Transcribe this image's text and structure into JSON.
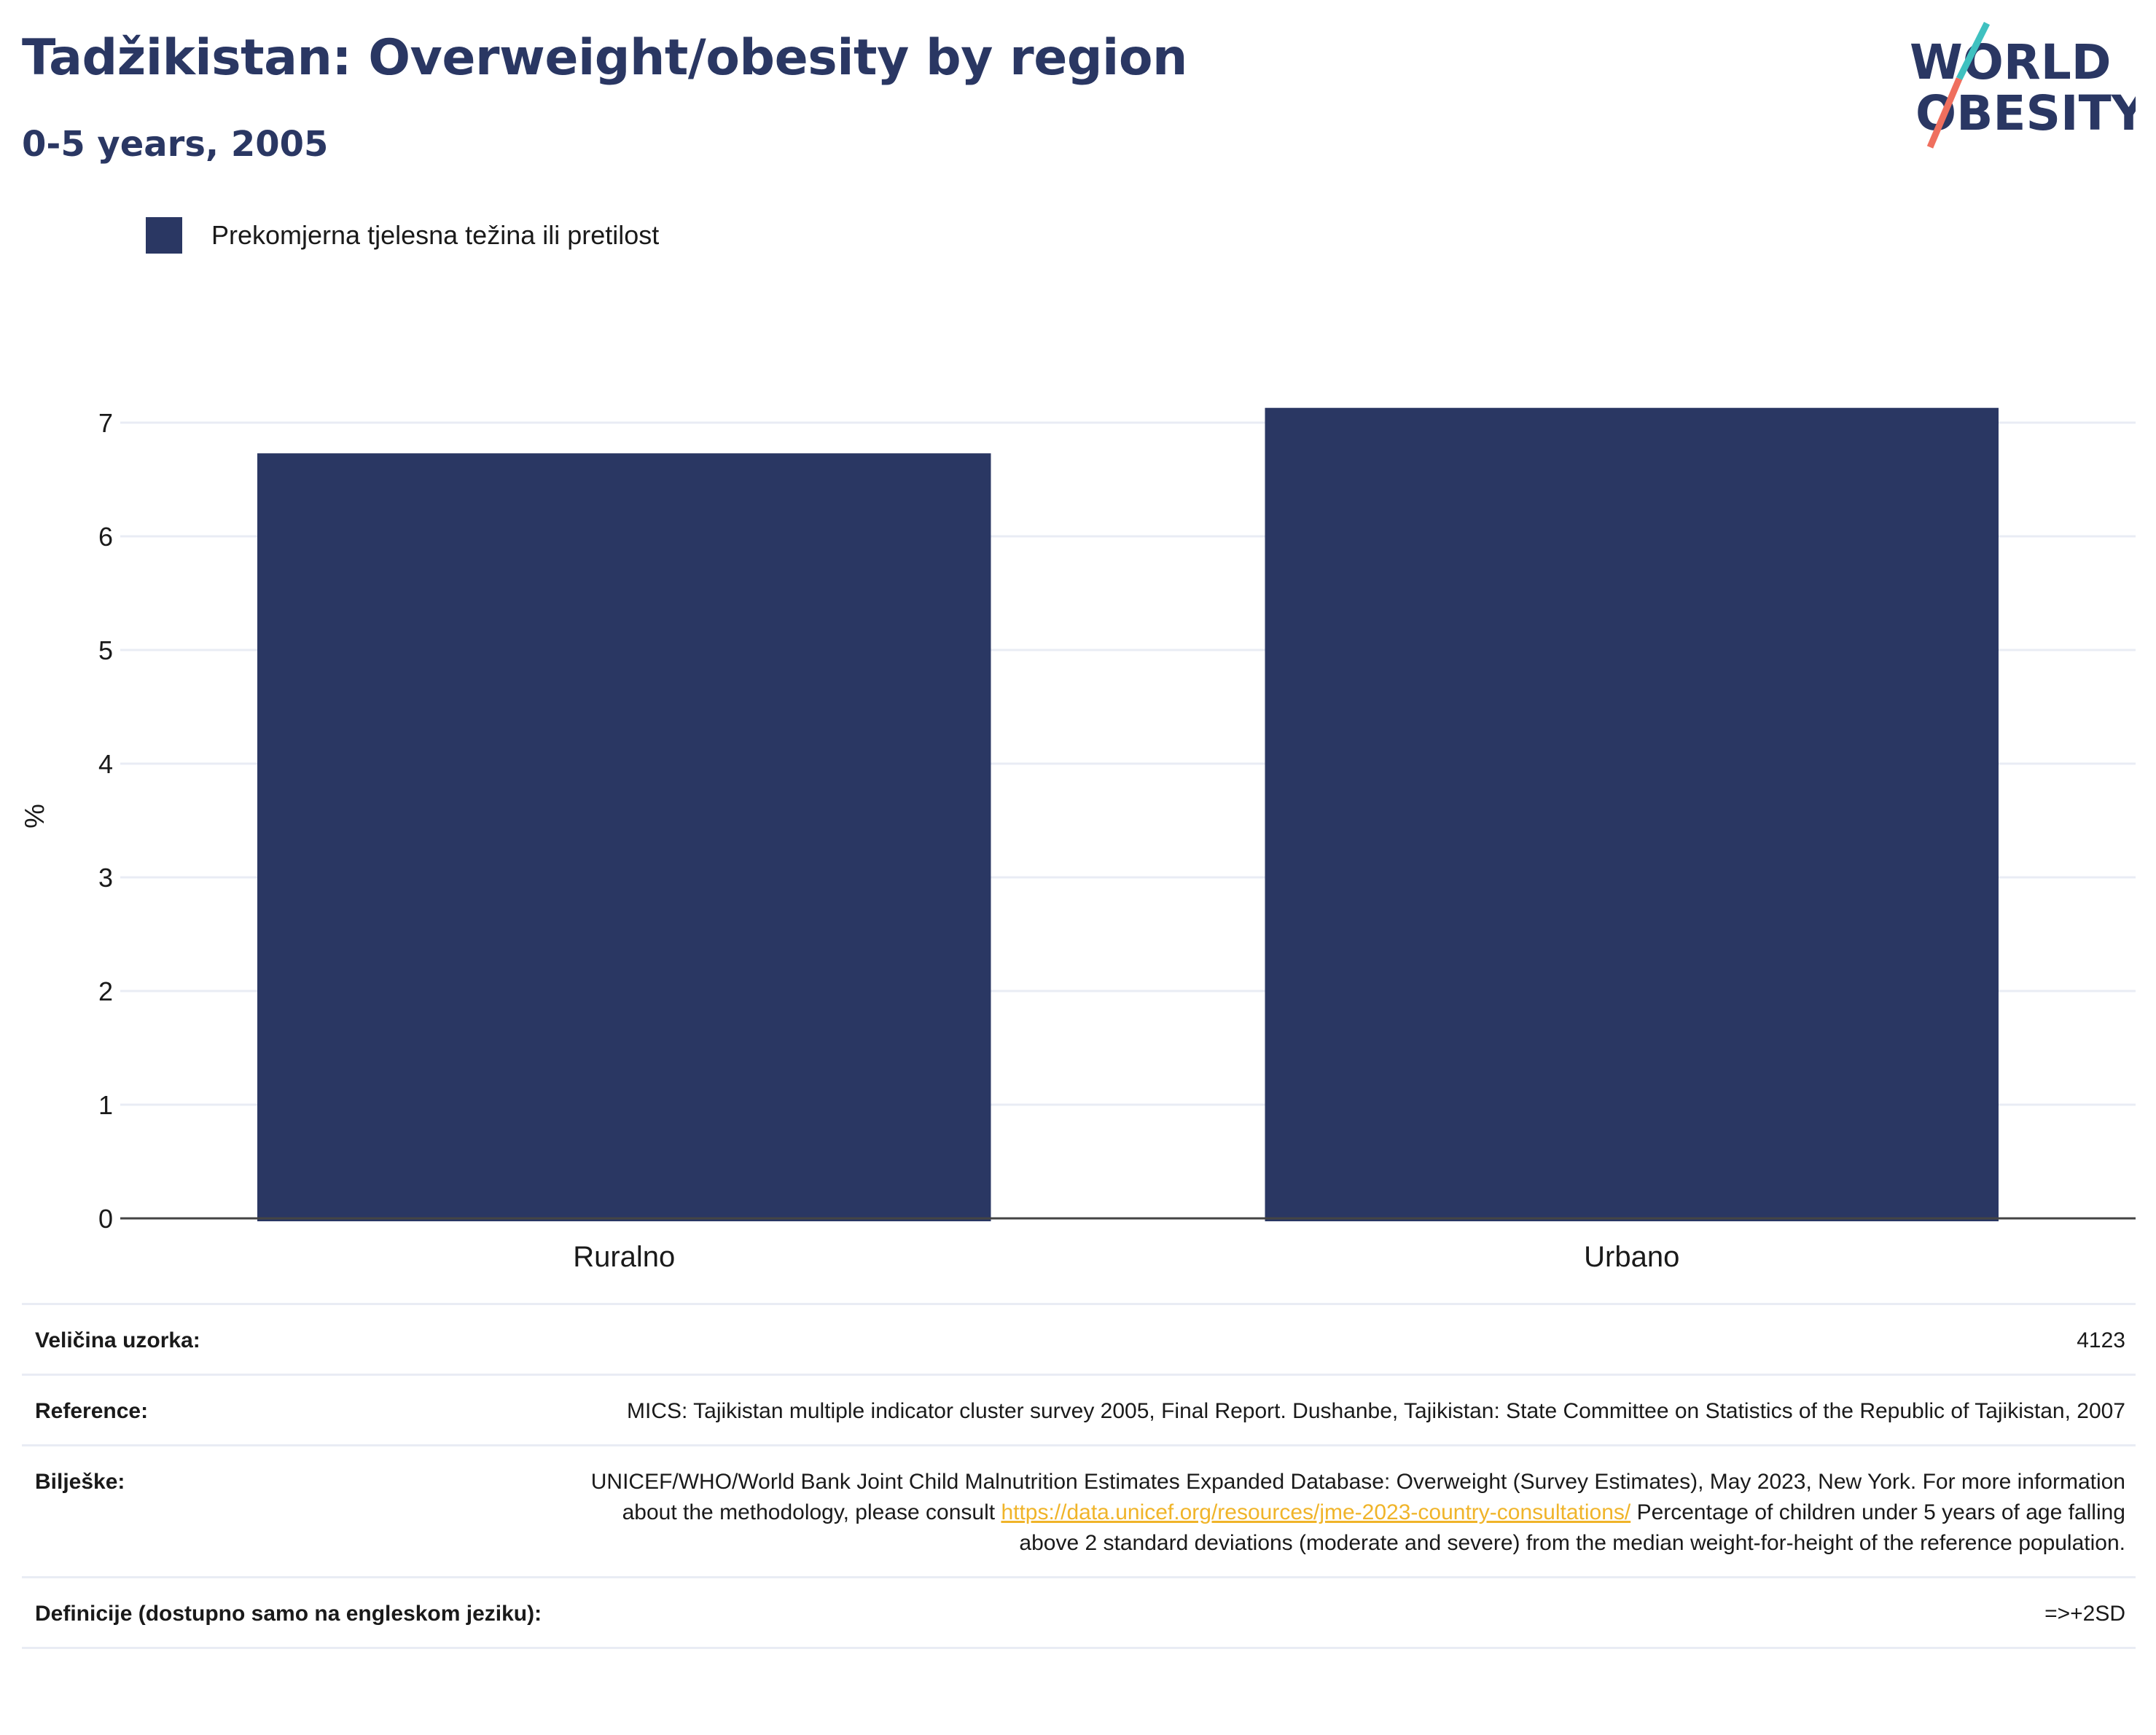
{
  "header": {
    "title": "Tadžikistan: Overweight/obesity by region",
    "subtitle": "0-5 years, 2005"
  },
  "logo": {
    "line1": "WORLD",
    "line2": "OBESITY"
  },
  "colors": {
    "bar": "#2a3763",
    "title": "#2a3763",
    "logo_teal": "#3fc1c0",
    "logo_coral": "#ef6f5e",
    "link": "#f0b429",
    "grid": "#e9ecf4"
  },
  "chart_data": {
    "type": "bar",
    "categories": [
      "Ruralno",
      "Urbano"
    ],
    "series": [
      {
        "name": "Prekomjerna tjelesna težina ili pretilost",
        "values": [
          6.73,
          7.13
        ]
      }
    ],
    "title": "Tadžikistan: Overweight/obesity by region",
    "subtitle": "0-5 years, 2005",
    "xlabel": "",
    "ylabel": "%",
    "ylim": [
      0,
      7.2
    ],
    "yticks": [
      0,
      1,
      2,
      3,
      4,
      5,
      6,
      7
    ],
    "grid": true,
    "legend_position": "top-left"
  },
  "info": {
    "rows": [
      {
        "label": "Veličina uzorka:",
        "value": "4123"
      },
      {
        "label": "Reference:",
        "value": "MICS: Tajikistan multiple indicator cluster survey 2005, Final Report. Dushanbe, Tajikistan: State Committee on Statistics of the Republic of Tajikistan, 2007"
      },
      {
        "label": "Bilješke:",
        "value_pre": "UNICEF/WHO/World Bank Joint Child Malnutrition Estimates Expanded Database: Overweight (Survey Estimates), May 2023, New York. For more information about the methodology, please consult",
        "link": "https://data.unicef.org/resources/jme-2023-country-consultations/",
        "value_post": "Percentage of children under 5 years of age falling above 2 standard deviations (moderate and severe) from the median weight-for-height of the reference population."
      },
      {
        "label": "Definicije (dostupno samo na engleskom jeziku):",
        "value": "=>+2SD"
      }
    ]
  }
}
